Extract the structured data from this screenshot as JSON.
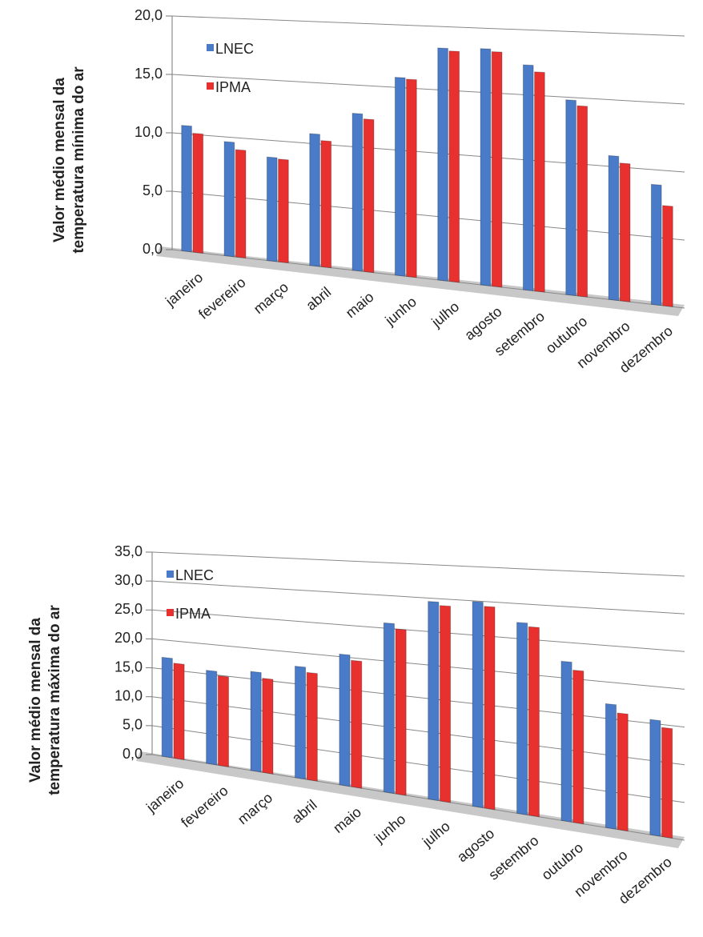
{
  "chart_data": [
    {
      "type": "bar",
      "ylabel": [
        "Valor médio mensal da",
        "temperatura  mínima do ar"
      ],
      "categories": [
        "janeiro",
        "fevereiro",
        "março",
        "abril",
        "maio",
        "junho",
        "julho",
        "agosto",
        "setembro",
        "outubro",
        "novembro",
        "dezembro"
      ],
      "series": [
        {
          "name": "LNEC",
          "color": "#4a7bc8",
          "values": [
            10.7,
            9.6,
            8.6,
            10.8,
            12.7,
            15.8,
            18.3,
            18.4,
            17.3,
            14.8,
            10.8,
            8.9
          ]
        },
        {
          "name": "IPMA",
          "color": "#e8312f",
          "values": [
            10.1,
            9.0,
            8.5,
            10.3,
            12.3,
            15.7,
            18.1,
            18.2,
            16.8,
            14.4,
            10.3,
            7.4
          ]
        }
      ],
      "ylim": [
        0,
        20
      ],
      "yticks": [
        {
          "value": 0,
          "label": "0,0"
        },
        {
          "value": 5,
          "label": "5,0"
        },
        {
          "value": 10,
          "label": "10,0"
        },
        {
          "value": 15,
          "label": "15,0"
        },
        {
          "value": 20,
          "label": "20,0"
        }
      ],
      "grid": true
    },
    {
      "type": "bar",
      "ylabel": [
        "Valor médio mensal da",
        "temperatura máxima do ar"
      ],
      "categories": [
        "janeiro",
        "fevereiro",
        "março",
        "abril",
        "maio",
        "junho",
        "julho",
        "agosto",
        "setembro",
        "outubro",
        "novembro",
        "dezembro"
      ],
      "series": [
        {
          "name": "LNEC",
          "color": "#4a7bc8",
          "values": [
            17.0,
            15.6,
            16.2,
            17.8,
            20.4,
            25.8,
            29.5,
            29.9,
            27.3,
            22.3,
            17.0,
            15.5
          ]
        },
        {
          "name": "IPMA",
          "color": "#e8312f",
          "values": [
            16.2,
            14.9,
            15.3,
            17.0,
            19.6,
            25.0,
            29.0,
            29.3,
            26.8,
            21.2,
            15.9,
            14.6
          ]
        }
      ],
      "ylim": [
        0,
        35
      ],
      "yticks": [
        {
          "value": 0,
          "label": "0,0"
        },
        {
          "value": 5,
          "label": "5,0"
        },
        {
          "value": 10,
          "label": "10,0"
        },
        {
          "value": 15,
          "label": "15,0"
        },
        {
          "value": 20,
          "label": "20,0"
        },
        {
          "value": 25,
          "label": "25,0"
        },
        {
          "value": 30,
          "label": "30,0"
        },
        {
          "value": 35,
          "label": "35,0"
        }
      ],
      "grid": true
    }
  ]
}
